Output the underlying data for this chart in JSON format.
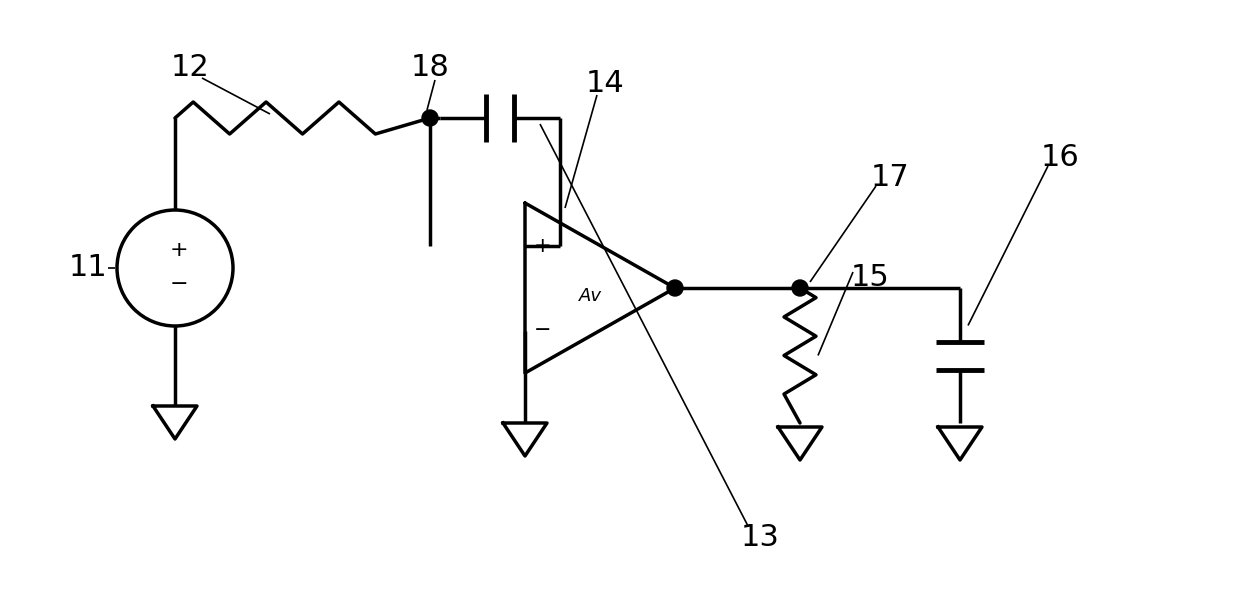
{
  "bg_color": "#ffffff",
  "line_color": "#000000",
  "lw": 2.5,
  "fig_width": 12.4,
  "fig_height": 5.98,
  "dpi": 100
}
